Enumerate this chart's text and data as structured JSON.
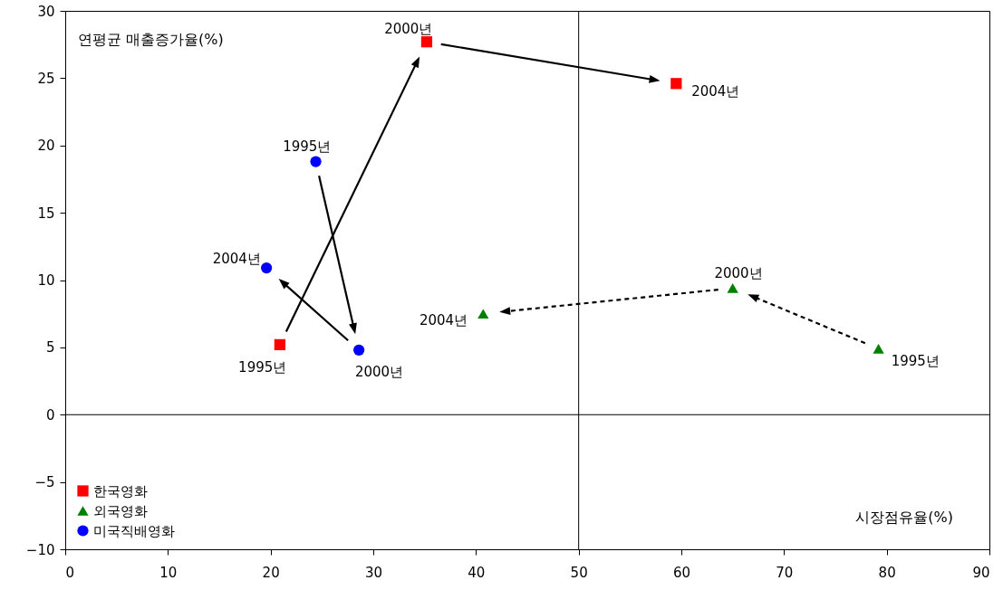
{
  "chart_data": {
    "type": "scatter",
    "xlabel": "시장점유율(%)",
    "ylabel": "연평균 매출증가율(%)",
    "xlim": [
      0,
      90
    ],
    "xticks": [
      0,
      10,
      20,
      30,
      40,
      50,
      60,
      70,
      80,
      90
    ],
    "ylim": [
      -10,
      30
    ],
    "yticks": [
      {
        "value": -10,
        "label": "−10"
      },
      {
        "value": -5,
        "label": "−5"
      },
      0,
      5,
      10,
      15,
      20,
      25,
      30
    ],
    "grid": false,
    "legend": "bottom left",
    "series": [
      {
        "name": "한국영화",
        "color": "#ff0000",
        "marker": "square",
        "line_style": "solid",
        "x": [
          20.9,
          35.2,
          59.5
        ],
        "values": [
          5.2,
          27.7,
          24.6
        ]
      },
      {
        "name": "외국영화",
        "color": "#008000",
        "marker": "triangle",
        "line_style": "dashed",
        "x": [
          79.2,
          65.0,
          40.7
        ],
        "values": [
          4.9,
          9.4,
          7.5
        ]
      },
      {
        "name": "미국직배영화",
        "color": "#0000ff",
        "marker": "circle",
        "line_style": "solid",
        "x": [
          24.4,
          28.6,
          19.6
        ],
        "values": [
          18.8,
          4.8,
          10.9
        ]
      }
    ],
    "ref_lines": [
      {
        "axis": "x",
        "value": 50
      },
      {
        "axis": "y",
        "value": 0
      }
    ],
    "annotations": [
      {
        "text": "1995년",
        "x": 20.9,
        "y": 5.2
      },
      {
        "text": "2000년",
        "x": 35.2,
        "y": 27.7
      },
      {
        "text": "2004년",
        "x": 59.5,
        "y": 24.6
      },
      {
        "text": "1995년",
        "x": 79.2,
        "y": 4.9
      },
      {
        "text": "2000년",
        "x": 65.0,
        "y": 9.4
      },
      {
        "text": "2004년",
        "x": 40.7,
        "y": 7.5
      },
      {
        "text": "1995년",
        "x": 24.4,
        "y": 18.8
      },
      {
        "text": "2000년",
        "x": 28.6,
        "y": 4.8
      },
      {
        "text": "2004년",
        "x": 19.6,
        "y": 10.9
      }
    ]
  }
}
